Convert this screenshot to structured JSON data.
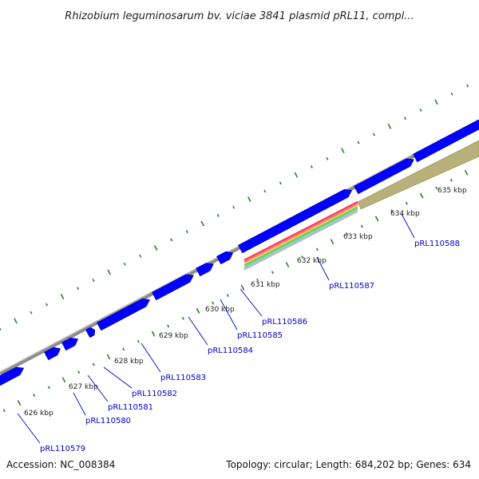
{
  "title": "Rhizobium leguminosarum bv. viciae 3841 plasmid pRL11, compl...",
  "footer": {
    "accession": "Accession: NC_008384",
    "summary": "Topology: circular; Length: 684,202 bp; Genes: 634"
  },
  "colors": {
    "backbone": "#8c8c8c",
    "gene_forward": "#0000ff",
    "gene_highlight": "#b8b07a",
    "gene_label": "#0000cc",
    "gc_ticks": "#2e7d32",
    "band_red": "#ff3b3b",
    "band_pink": "#ff6fae",
    "band_yellow": "#f3d33c",
    "band_green": "#5fcf5f",
    "band_teal": "#7fd6c8",
    "band_grey": "#bdbdbd"
  },
  "ticks": [
    {
      "label": "626 kbp"
    },
    {
      "label": "627 kbp"
    },
    {
      "label": "628 kbp"
    },
    {
      "label": "629 kbp"
    },
    {
      "label": "630 kbp"
    },
    {
      "label": "631 kbp"
    },
    {
      "label": "632 kbp"
    },
    {
      "label": "633 kbp"
    },
    {
      "label": "634 kbp"
    },
    {
      "label": "635 kbp"
    }
  ],
  "genes": [
    {
      "label": "pRL110579"
    },
    {
      "label": "pRL110580"
    },
    {
      "label": "pRL110581"
    },
    {
      "label": "pRL110582"
    },
    {
      "label": "pRL110583"
    },
    {
      "label": "pRL110584"
    },
    {
      "label": "pRL110585"
    },
    {
      "label": "pRL110586"
    },
    {
      "label": "pRL110587"
    },
    {
      "label": "pRL110588"
    }
  ]
}
